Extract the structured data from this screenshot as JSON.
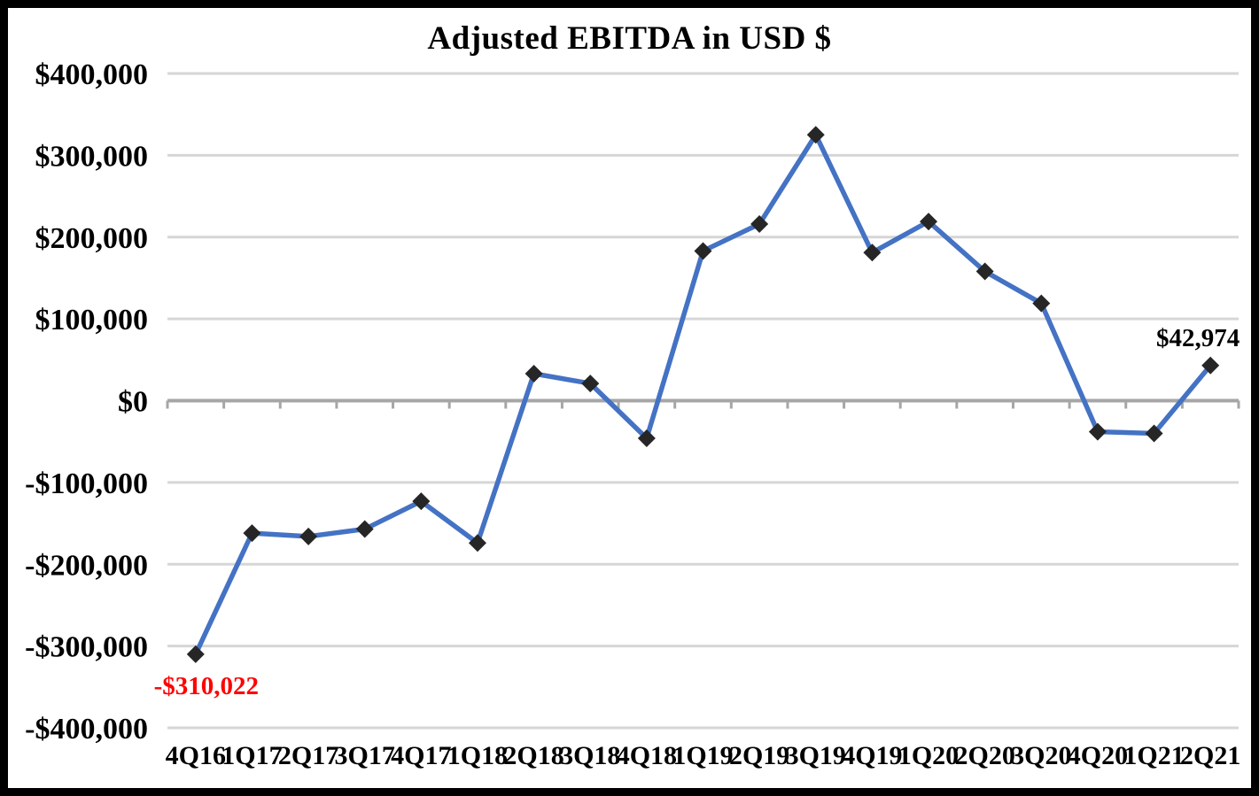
{
  "chart_data": {
    "type": "line",
    "title": "Adjusted EBITDA in USD $",
    "categories": [
      "4Q16",
      "1Q17",
      "2Q17",
      "3Q17",
      "4Q17",
      "1Q18",
      "2Q18",
      "3Q18",
      "4Q18",
      "1Q19",
      "2Q19",
      "3Q19",
      "4Q19",
      "1Q20",
      "2Q20",
      "3Q20",
      "4Q20",
      "1Q21",
      "2Q21"
    ],
    "values": [
      -310022,
      -162000,
      -166000,
      -157000,
      -123000,
      -174000,
      33000,
      21000,
      -46000,
      183000,
      216000,
      325000,
      181000,
      219000,
      158000,
      119000,
      -38000,
      -40000,
      42974
    ],
    "xlabel": "",
    "ylabel": "",
    "ylim": [
      -400000,
      400000
    ],
    "ytick_step": 100000,
    "yticks": [
      {
        "value": 400000,
        "label": "$400,000"
      },
      {
        "value": 300000,
        "label": "$300,000"
      },
      {
        "value": 200000,
        "label": "$200,000"
      },
      {
        "value": 100000,
        "label": "$100,000"
      },
      {
        "value": 0,
        "label": "$0"
      },
      {
        "value": -100000,
        "label": "-$100,000"
      },
      {
        "value": -200000,
        "label": "-$200,000"
      },
      {
        "value": -300000,
        "label": "-$300,000"
      },
      {
        "value": -400000,
        "label": "-$400,000"
      }
    ],
    "annotations": [
      {
        "index": 0,
        "text": "-$310,022",
        "color": "#ff0000",
        "placement": "below"
      },
      {
        "index": 18,
        "text": "$42,974",
        "color": "#000000",
        "placement": "above"
      }
    ],
    "grid": "horizontal",
    "legend": "none",
    "marker_shape": "diamond",
    "colors": {
      "line": "#4472c4",
      "marker": "#262626",
      "gridline": "#d6d6d6",
      "zero_axis": "#a6a6a6",
      "text": "#000000",
      "background": "#ffffff",
      "frame": "#000000",
      "negative_label": "#ff0000"
    }
  }
}
